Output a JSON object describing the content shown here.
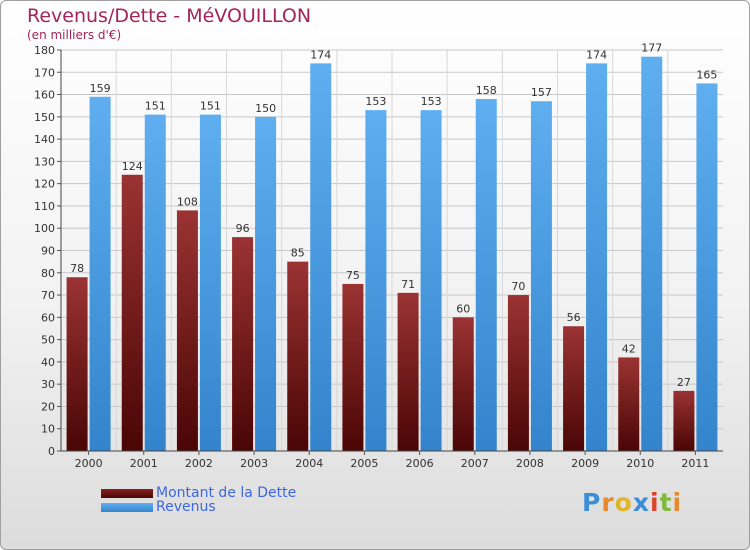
{
  "chart_data": {
    "type": "bar",
    "title": "Revenus/Dette - MéVOUILLON",
    "subtitle": "(en milliers d'€)",
    "categories": [
      "2000",
      "2001",
      "2002",
      "2003",
      "2004",
      "2005",
      "2006",
      "2007",
      "2008",
      "2009",
      "2010",
      "2011"
    ],
    "series": [
      {
        "name": "Montant de la Dette",
        "color": "#6b0d0d",
        "values": [
          78,
          124,
          108,
          96,
          85,
          75,
          71,
          60,
          70,
          56,
          42,
          27
        ]
      },
      {
        "name": "Revenus",
        "color": "#4f9fe2",
        "values": [
          159,
          151,
          151,
          150,
          174,
          153,
          153,
          158,
          157,
          174,
          177,
          165
        ]
      }
    ],
    "ylim": [
      0,
      180
    ],
    "ytick_step": 10,
    "grid": true,
    "legend_position": "bottom-left"
  },
  "logo": {
    "text": "Proxiti",
    "letters": [
      "P",
      "r",
      "o",
      "x",
      "i",
      "t",
      "i"
    ],
    "colors": [
      "#3a8ed8",
      "#e8892b",
      "#e0b52a",
      "#3a8ed8",
      "#d9432a",
      "#7fba3a",
      "#e8892b"
    ]
  }
}
